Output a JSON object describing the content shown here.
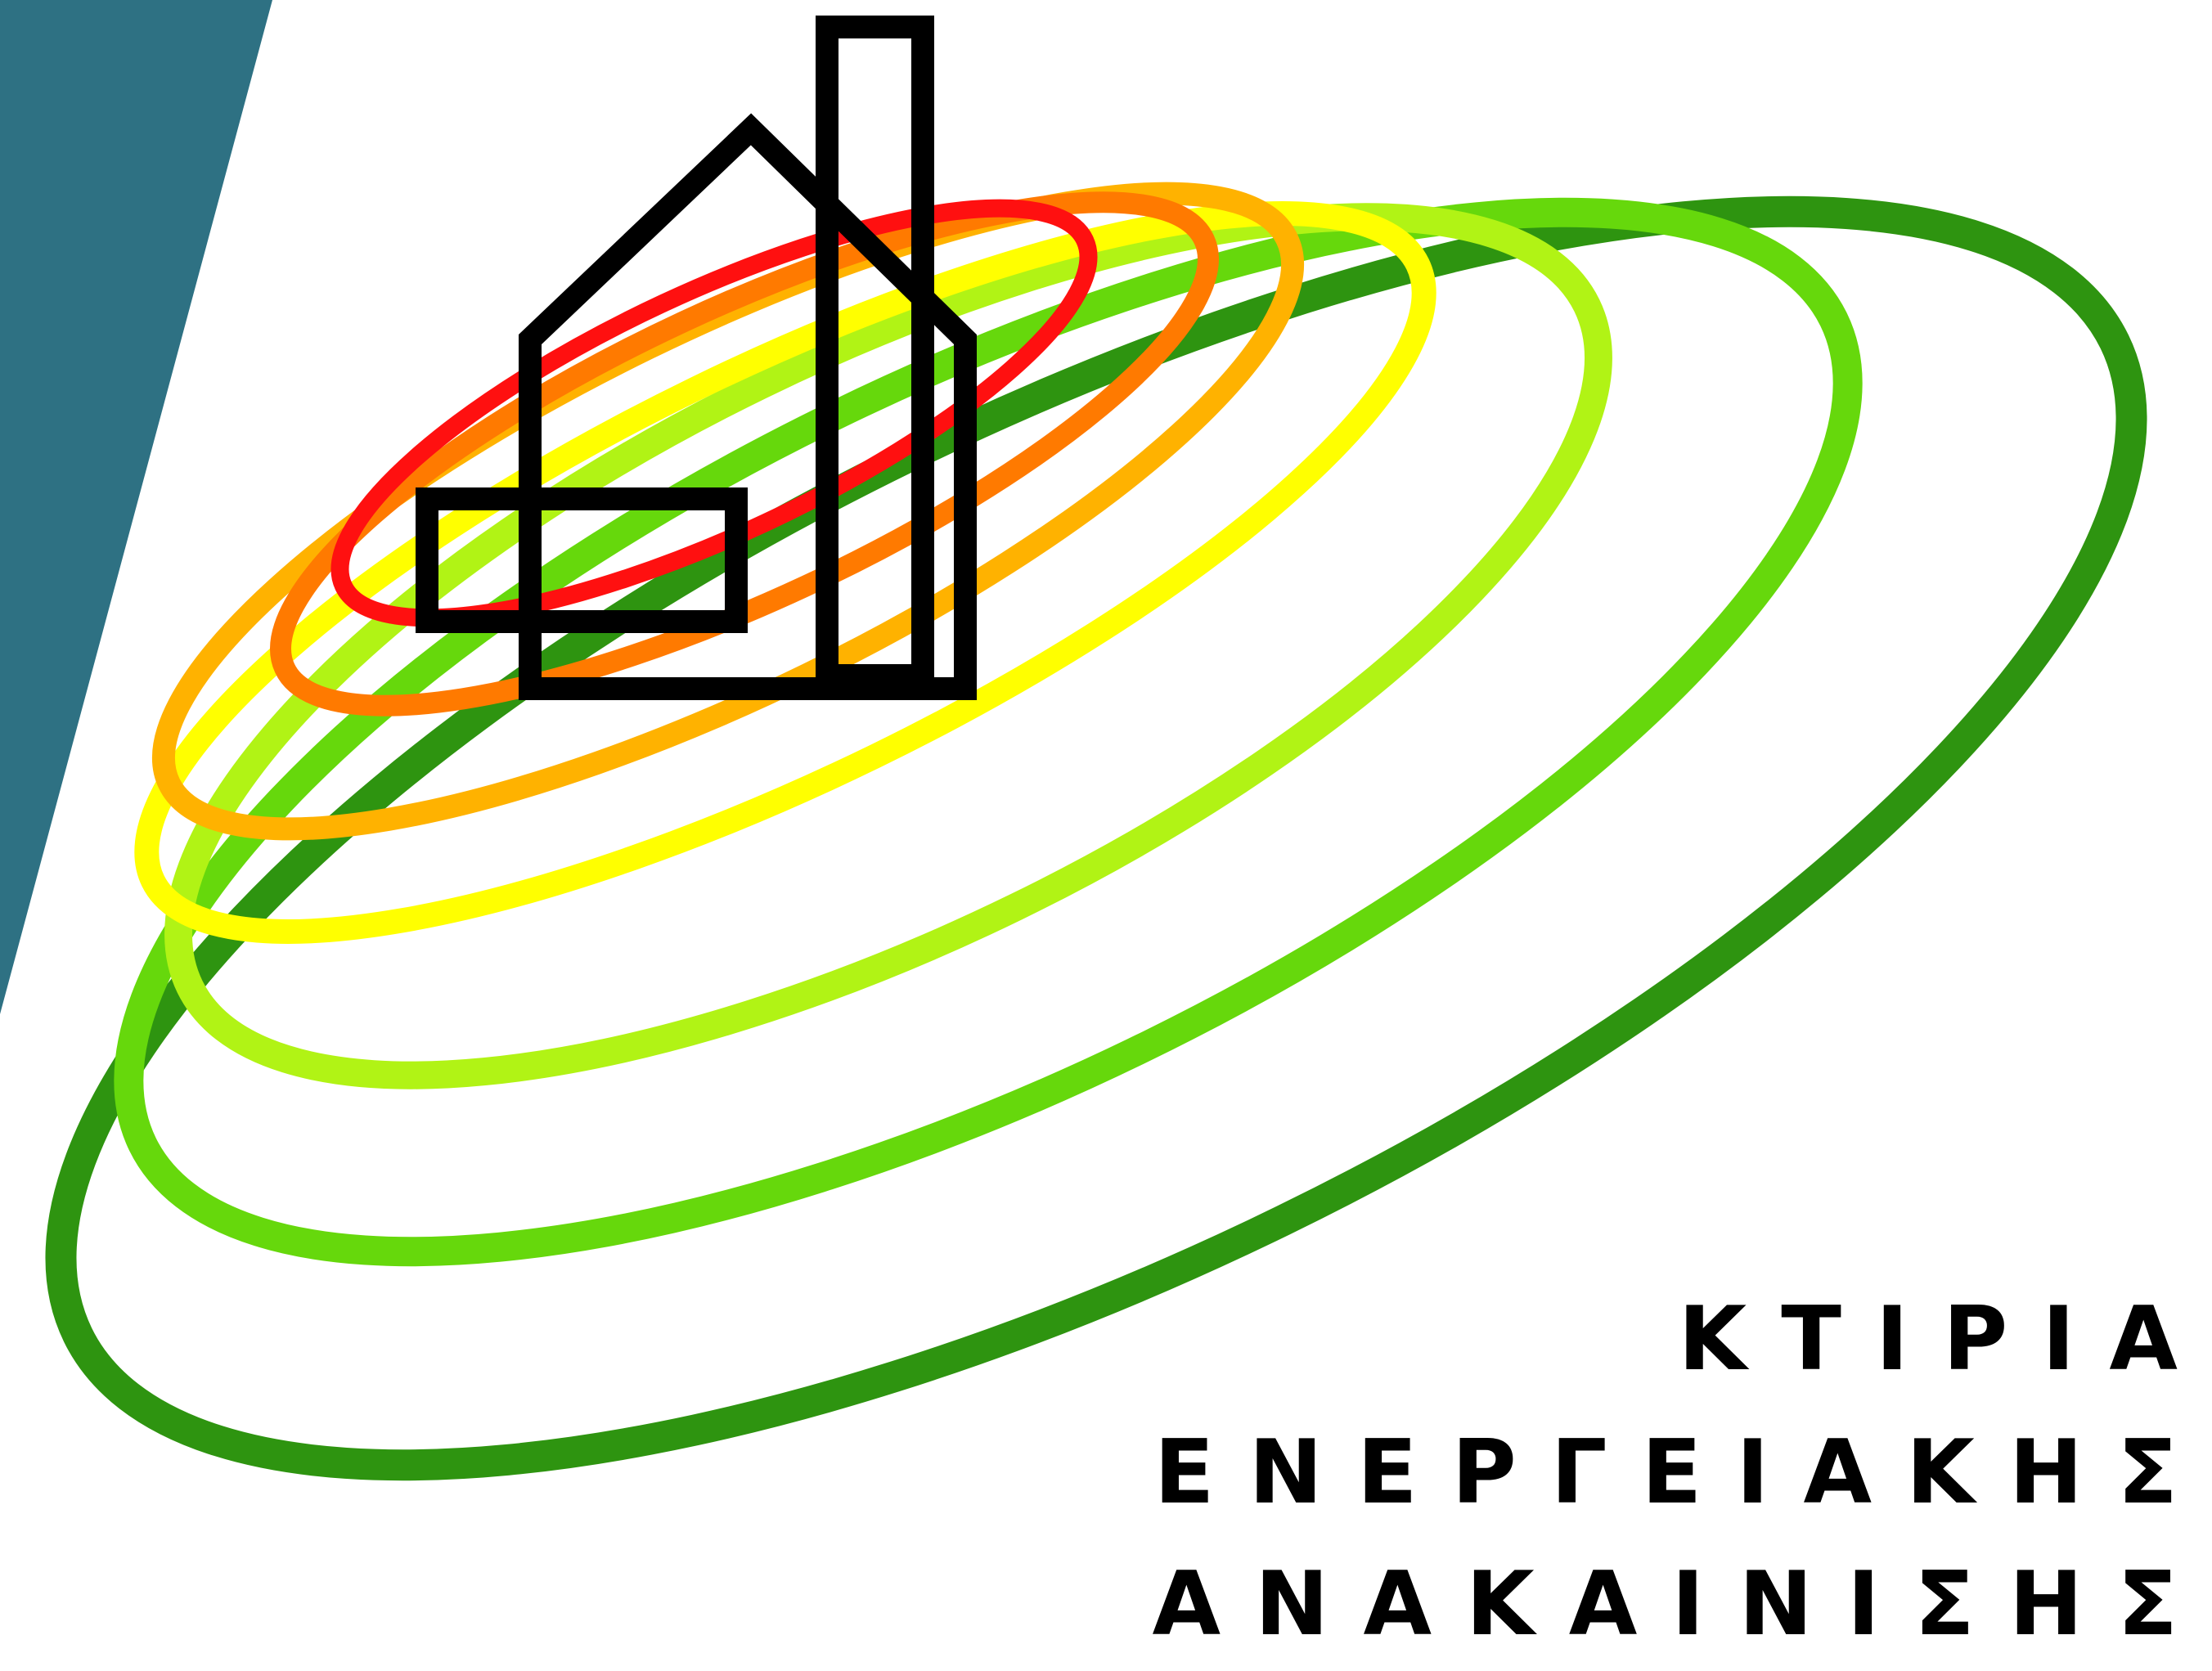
{
  "colors": {
    "background": "#ffffff",
    "panel": "#2e7183",
    "house": "#000000",
    "text": "#000000",
    "rings": [
      "#2e9410",
      "#66d80c",
      "#b1f315",
      "#ffff00",
      "#ffb200",
      "#ff7a00",
      "#ff1010"
    ]
  },
  "logo": {
    "lines": [
      "ΚΤΙΡΙΑ",
      "ΕΝΕΡΓΕΙΑΚΗΣ",
      "ΑΝΑΚΑΙΝΙΣΗΣ"
    ]
  },
  "icons": {
    "house": "house-with-chimney-icon",
    "rings": "energy-rating-rings-icon"
  }
}
